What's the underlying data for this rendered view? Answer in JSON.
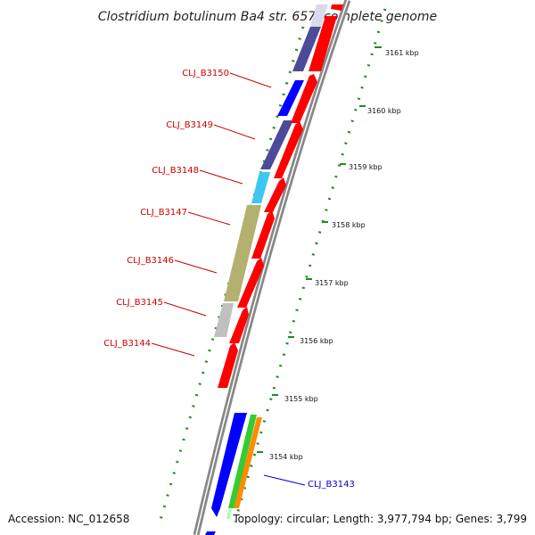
{
  "title": "Clostridium botulinum Ba4 str. 657, complete genome",
  "footer": {
    "accession": "Accession: NC_012658",
    "topology": "Topology: circular; Length: 3,977,794 bp; Genes: 3,799"
  },
  "colors": {
    "backbone": "#888888",
    "tick": "#228b22",
    "plus_strand": "#ff0000",
    "label_minus": "#cc0000",
    "label_plus": "#0000cc"
  },
  "kbp_ticks": [
    "3161 kbp",
    "3160 kbp",
    "3159 kbp",
    "3158 kbp",
    "3157 kbp",
    "3156 kbp",
    "3155 kbp",
    "3154 kbp"
  ],
  "genes_labeled": [
    {
      "label": "CLJ_B3150",
      "strand": "-"
    },
    {
      "label": "CLJ_B3149",
      "strand": "-"
    },
    {
      "label": "CLJ_B3148",
      "strand": "-"
    },
    {
      "label": "CLJ_B3147",
      "strand": "-"
    },
    {
      "label": "CLJ_B3146",
      "strand": "-"
    },
    {
      "label": "CLJ_B3145",
      "strand": "-"
    },
    {
      "label": "CLJ_B3144",
      "strand": "-"
    },
    {
      "label": "CLJ_B3143",
      "strand": "+"
    }
  ],
  "cog_colors": [
    "#4b4b9a",
    "#0000ff",
    "#3cc8f0",
    "#b4b070",
    "#c0c0c0",
    "#ff8c00",
    "#33cc33"
  ]
}
